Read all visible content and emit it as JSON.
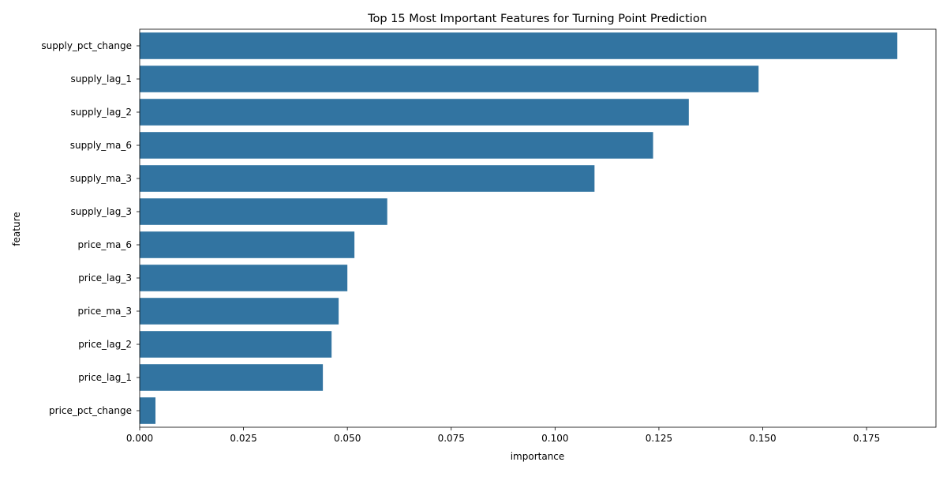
{
  "chart_data": {
    "type": "bar",
    "orientation": "horizontal",
    "title": "Top 15 Most Important Features for Turning Point Prediction",
    "xlabel": "importance",
    "ylabel": "feature",
    "categories": [
      "supply_pct_change",
      "supply_lag_1",
      "supply_lag_2",
      "supply_ma_6",
      "supply_ma_3",
      "supply_lag_3",
      "price_ma_6",
      "price_lag_3",
      "price_ma_3",
      "price_lag_2",
      "price_lag_1",
      "price_pct_change"
    ],
    "values": [
      0.1824,
      0.149,
      0.1322,
      0.1236,
      0.1095,
      0.0596,
      0.0517,
      0.05,
      0.0479,
      0.0462,
      0.0441,
      0.0038
    ],
    "xlim": [
      0,
      0.1917
    ],
    "xticks": [
      "0.000",
      "0.025",
      "0.050",
      "0.075",
      "0.100",
      "0.125",
      "0.150",
      "0.175"
    ],
    "bar_color": "#3274a1",
    "grid": false,
    "legend": "none"
  }
}
